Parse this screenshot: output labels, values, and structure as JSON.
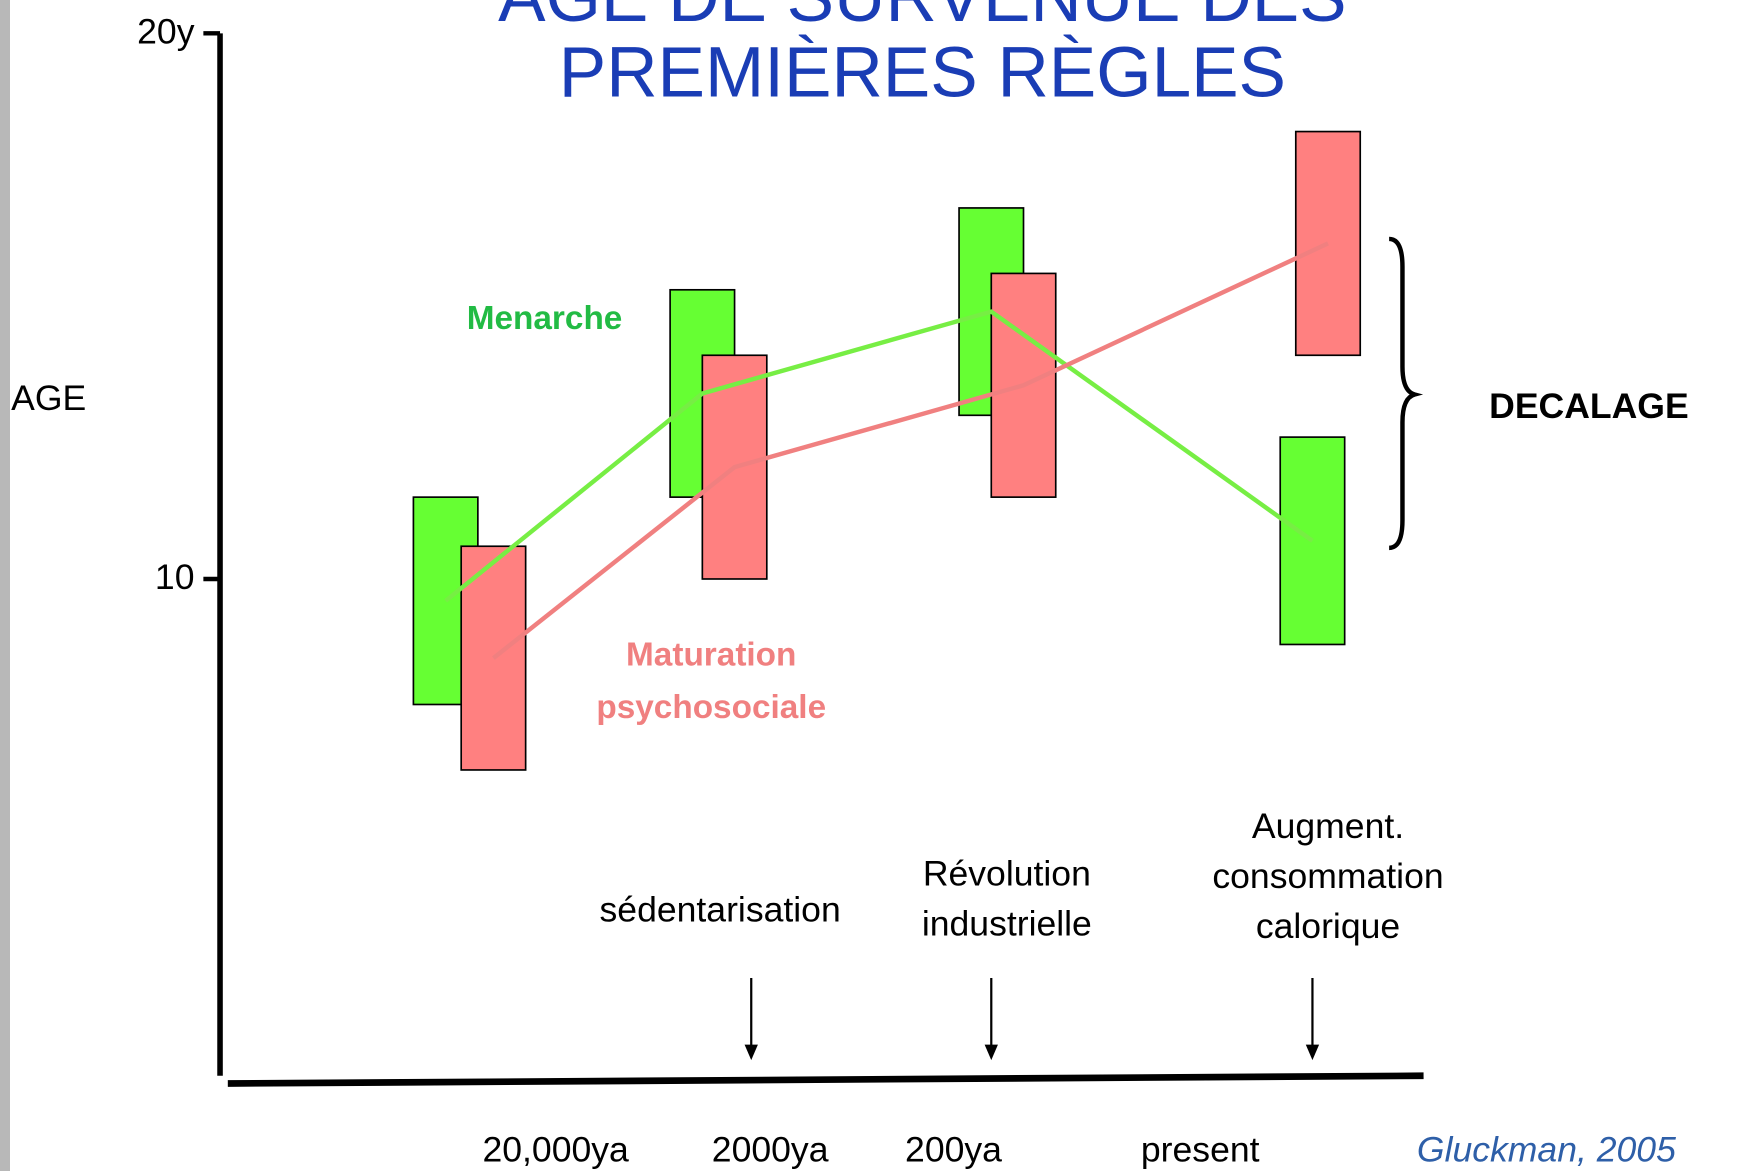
{
  "chart_data": {
    "type": "range_bar",
    "title": [
      "AGE DE SURVENUE DES",
      "PREMIÈRES RÈGLES"
    ],
    "y_label": "AGE",
    "categories": [
      "20,000ya",
      "2000ya",
      "200ya",
      "present"
    ],
    "series": [
      {
        "name": "Menarche",
        "color": "#66ff33",
        "line_color": "#77ee44",
        "low": [
          7.7,
          11.5,
          13.0,
          8.8
        ],
        "high": [
          11.5,
          15.3,
          16.8,
          12.6
        ]
      },
      {
        "name": "Maturation psychosociale",
        "color": "#ff8080",
        "line_color": "#f08080",
        "low": [
          6.5,
          10.0,
          11.5,
          14.1
        ],
        "high": [
          10.6,
          14.1,
          15.6,
          18.2
        ]
      }
    ],
    "ylim": [
      1,
      20
    ],
    "yticks": [
      {
        "value": 20,
        "label": "20y"
      },
      10
    ],
    "annotations": [
      {
        "lines": [
          "sédentarisation"
        ]
      },
      {
        "lines": [
          "Révolution",
          "industrielle"
        ]
      },
      {
        "lines": [
          "Augment.",
          "consommation",
          "calorique"
        ]
      }
    ],
    "bracket_label": "DECALAGE",
    "source": "Gluckman, 2005"
  }
}
